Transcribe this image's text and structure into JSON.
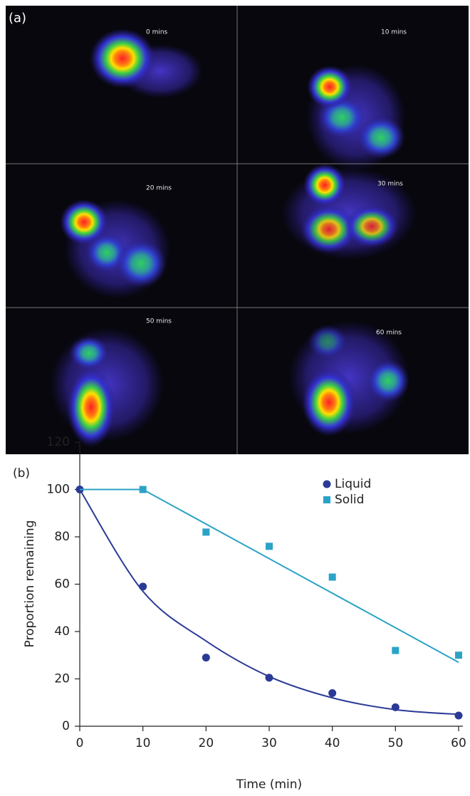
{
  "panel_a": {
    "label": "(a)",
    "frames": [
      {
        "label": "0 mins"
      },
      {
        "label": "10 mins"
      },
      {
        "label": "20 mins"
      },
      {
        "label": "30 mins"
      },
      {
        "label": "50 mins"
      },
      {
        "label": "60 mins"
      }
    ]
  },
  "chart_data": {
    "type": "scatter",
    "panel_label": "(b)",
    "x_label": "Time (min)",
    "y_label": "Proportion remaining",
    "xlim": [
      0,
      60
    ],
    "xticks": [
      0,
      10,
      20,
      30,
      40,
      50,
      60
    ],
    "ylim": [
      0,
      120
    ],
    "yticks": [
      0,
      20,
      40,
      60,
      80,
      100,
      120
    ],
    "legend": "top-right",
    "series": [
      {
        "name": "Liquid",
        "color": "#2b3a96",
        "marker": "circle",
        "x": [
          0,
          10,
          20,
          30,
          40,
          50,
          60
        ],
        "values": [
          100,
          59,
          29,
          20.5,
          14,
          8,
          4.5
        ],
        "fit_shape": "curve",
        "fit_x": [
          0,
          10,
          20,
          30,
          40,
          50,
          60
        ],
        "fit_values": [
          100,
          57,
          36,
          21,
          12,
          7,
          5
        ]
      },
      {
        "name": "Solid",
        "color": "#2ba3c6",
        "marker": "square",
        "x": [
          10,
          20,
          30,
          40,
          50,
          60
        ],
        "values": [
          100,
          82,
          76,
          63,
          32,
          30
        ],
        "fit_shape": "straight",
        "fit_x": [
          0,
          10,
          60
        ],
        "fit_values": [
          100,
          100,
          27
        ]
      }
    ]
  }
}
